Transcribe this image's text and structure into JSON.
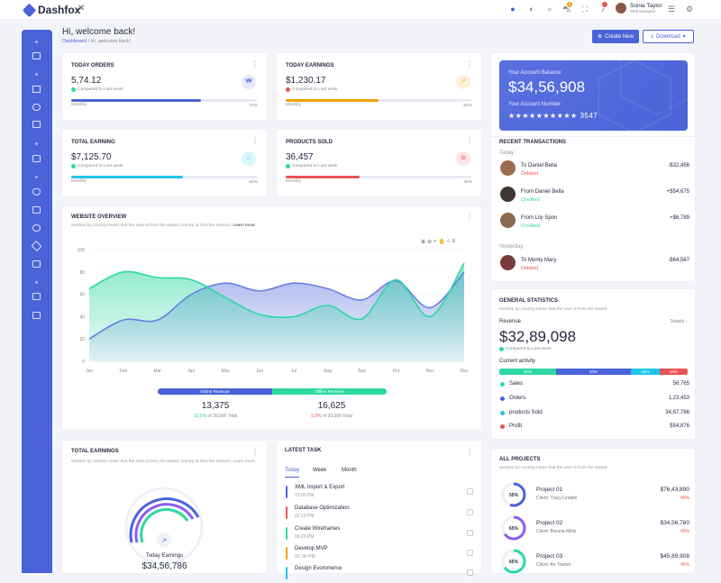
{
  "app": {
    "name": "Dashfox"
  },
  "topbar": {
    "user_name": "Sonia Taylor",
    "user_role": "Web Designer",
    "cart_badge": "5"
  },
  "header": {
    "title": "Hi, welcome back!",
    "breadcrumb_home": "Dashboard",
    "breadcrumb_sep": "/",
    "breadcrumb_current": "Hi, welcome back!"
  },
  "actions": {
    "create_label": "Create New",
    "download_label": "Download"
  },
  "stats": [
    {
      "title": "TODAY ORDERS",
      "value": "5,74.12",
      "compare": "Compared to Last week",
      "period": "Monthly",
      "percent_label": "70%",
      "fill": 0.7,
      "trend": "up",
      "color": "#4a63d8"
    },
    {
      "title": "TODAY EARNINGS",
      "value": "$1,230.17",
      "compare": "Compared to Last week",
      "period": "Monthly",
      "percent_label": "50%",
      "fill": 0.5,
      "trend": "down",
      "color": "#f59e0b"
    },
    {
      "title": "TOTAL EARNING",
      "value": "$7,125.70",
      "compare": "Compared to Last week",
      "period": "Monthly",
      "percent_label": "60%",
      "fill": 0.6,
      "trend": "up",
      "color": "#1ec6e6"
    },
    {
      "title": "PRODUCTS SOLD",
      "value": "36,457",
      "compare": "Compared to Last week",
      "period": "Monthly",
      "percent_label": "40%",
      "fill": 0.4,
      "trend": "up",
      "color": "#ea5455"
    }
  ],
  "overview": {
    "title": "WEBSITE OVERVIEW",
    "subtitle": "session by country mean that the user is from the stated country or that the session.",
    "learn_more": "Learn more",
    "online_label": "Online Revenue",
    "offline_label": "Offline Revenue",
    "online_value": "13,375",
    "online_pct": "10.5%",
    "online_of": "of 20,000 Total",
    "offline_value": "16,625",
    "offline_pct": "5.5%",
    "offline_of": "of 20,000 Total"
  },
  "chart_data": {
    "type": "area",
    "categories": [
      "Jan",
      "Feb",
      "Mar",
      "Apr",
      "May",
      "Jun",
      "Jul",
      "Aug",
      "Sep",
      "Oct",
      "Nov",
      "Dec"
    ],
    "ylim": [
      0,
      100
    ],
    "yticks": [
      "0",
      "20",
      "40",
      "60",
      "80",
      "100"
    ],
    "series": [
      {
        "color": "#6b7fe0",
        "values": [
          20,
          37,
          37,
          60,
          70,
          63,
          70,
          65,
          55,
          72,
          48,
          80
        ]
      },
      {
        "color": "#2ed8a3",
        "values": [
          65,
          80,
          75,
          73,
          57,
          42,
          40,
          50,
          38,
          73,
          40,
          88
        ]
      }
    ]
  },
  "balance": {
    "label": "Your Account Balance",
    "amount": "$34,56,908",
    "number_label": "Your Account Number",
    "number": "★★★★★★★★★★ 3547"
  },
  "transactions": {
    "title": "RECENT TRANSACTIONS",
    "today_label": "Today",
    "yesterday_label": "Yesterday",
    "items": [
      {
        "name": "To Daniel Bella",
        "status": "Debited",
        "amount": "-$32,456"
      },
      {
        "name": "From Daniel Bella",
        "status": "Credited",
        "amount": "+$54,675"
      },
      {
        "name": "From Lily Spon",
        "status": "Credited",
        "amount": "+$6,789"
      },
      {
        "name": "To Monty Mary",
        "status": "Debited",
        "amount": "-$64,567"
      }
    ]
  },
  "general": {
    "title": "GENERAL STATISTICS",
    "subtitle": "session by country mean that the user is from the stated",
    "revenue_label": "Revenue",
    "details": "Details ›",
    "revenue": "$32,89,098",
    "compare": "Compared to Last week",
    "activity_label": "Current activity",
    "segments": [
      {
        "label": "30%",
        "value": 0.3,
        "color": "#2ed8a3"
      },
      {
        "label": "40%",
        "value": 0.4,
        "color": "#4a63d8"
      },
      {
        "label": "15%",
        "value": 0.15,
        "color": "#1ec6e6"
      },
      {
        "label": "15%",
        "value": 0.15,
        "color": "#ea5455"
      }
    ],
    "rows": [
      {
        "label": "Sales",
        "value": "56,765",
        "color": "#2ed8a3"
      },
      {
        "label": "Orders",
        "value": "1,23,453",
        "color": "#4a63d8"
      },
      {
        "label": "products Sold",
        "value": "34,67,786",
        "color": "#1ec6e6"
      },
      {
        "label": "Profit",
        "value": "$54,876",
        "color": "#ea5455"
      }
    ]
  },
  "total_earnings": {
    "title": "TOTAL EARNINGS",
    "subtitle": "session by country mean that the user is from the stated country or that the session. Learn more",
    "label": "Today Earnings",
    "value": "$34,56,786"
  },
  "tasks": {
    "title": "LATEST TASK",
    "tabs": [
      "Today",
      "Week",
      "Month"
    ],
    "items": [
      {
        "title": "XML Import & Export",
        "time": "12:00 PM",
        "color": "#4a63d8"
      },
      {
        "title": "Database Optimization",
        "time": "02:13 PM",
        "color": "#ea5455"
      },
      {
        "title": "Create Wireframes",
        "time": "06:20 PM",
        "color": "#2ed8a3"
      },
      {
        "title": "Develop MVP",
        "time": "10: 00 PM",
        "color": "#f59e0b"
      },
      {
        "title": "Design Evommerce",
        "time": "",
        "color": "#1ec6e6"
      }
    ]
  },
  "projects": {
    "title": "ALL PROJECTS",
    "subtitle": "session by country mean that the user is from the stated",
    "items": [
      {
        "name": "Project 01",
        "client": "Client: Tracy Lindahl",
        "amount": "$76,43,890",
        "pct": "40%",
        "ring": "55%",
        "progress": 0.55,
        "color": "#4a63d8"
      },
      {
        "name": "Project 02",
        "client": "Client: Breana Millis",
        "amount": "$34,56,780",
        "pct": "40%",
        "ring": "65%",
        "progress": 0.65,
        "color": "#8b5cf6"
      },
      {
        "name": "Project 03",
        "client": "Client: An Tramel",
        "amount": "$45,89,908",
        "pct": "40%",
        "ring": "65%",
        "progress": 0.65,
        "color": "#2ed8a3"
      }
    ]
  }
}
